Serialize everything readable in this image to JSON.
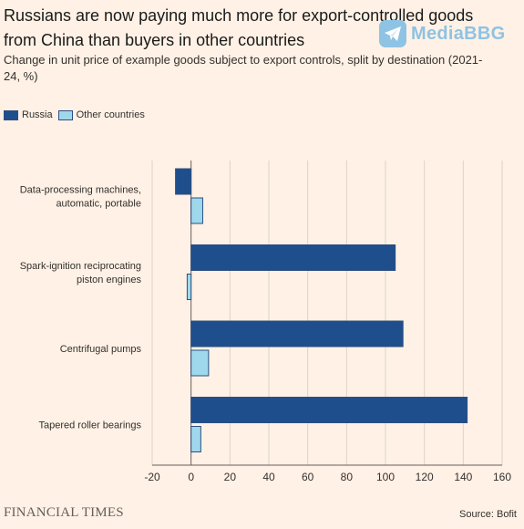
{
  "chart_data": {
    "type": "bar",
    "orientation": "horizontal",
    "title": "Russians are now paying much more for export-controlled goods from China than buyers in other countries",
    "subtitle": "Change in unit price of example goods subject to export controls, split by destination (2021-24, %)",
    "categories": [
      [
        "Data-processing machines,",
        "automatic, portable"
      ],
      [
        "Spark-ignition reciprocating",
        "piston engines"
      ],
      [
        "Centrifugal pumps"
      ],
      [
        "Tapered roller bearings"
      ]
    ],
    "series": [
      {
        "name": "Russia",
        "color": "#1F4E8C",
        "values": [
          -8,
          105,
          109,
          142
        ]
      },
      {
        "name": "Other countries",
        "color": "#9FD8EC",
        "values": [
          6,
          -2,
          9,
          5
        ]
      }
    ],
    "xlim": [
      -20,
      160
    ],
    "xticks": [
      "-20",
      "0",
      "20",
      "40",
      "60",
      "80",
      "100",
      "120",
      "140",
      "160"
    ],
    "grid": true,
    "legend_position": "top-left",
    "source": "Source: Bofit"
  },
  "branding": {
    "publisher": "FINANCIAL TIMES",
    "watermark": "MediaBBG",
    "watermark_icon": "telegram-icon"
  }
}
